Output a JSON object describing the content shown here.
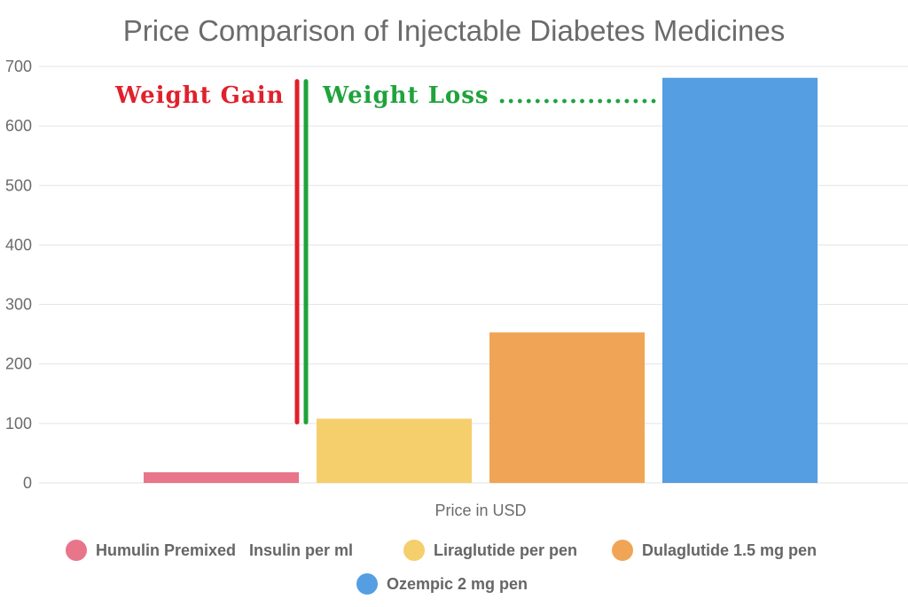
{
  "chart_data": {
    "type": "bar",
    "title": "Price Comparison of Injectable Diabetes Medicines",
    "xlabel": "Price in USD",
    "ylabel": "",
    "ylim": [
      0,
      700
    ],
    "yticks": [
      0,
      100,
      200,
      300,
      400,
      500,
      600,
      700
    ],
    "grid": true,
    "legend_position": "bottom",
    "series": [
      {
        "name": "Humulin Premixed   Insulin per ml",
        "values": [
          18
        ],
        "color": "#e8758a"
      },
      {
        "name": "Liraglutide per pen",
        "values": [
          108
        ],
        "color": "#f5cf6c"
      },
      {
        "name": "Dulaglutide 1.5 mg pen",
        "values": [
          253
        ],
        "color": "#f0a556"
      },
      {
        "name": "Ozempic 2 mg pen",
        "values": [
          681
        ],
        "color": "#559ee2"
      }
    ],
    "annotations": [
      {
        "text": "Weight Gain",
        "color": "#e0202c"
      },
      {
        "text": "Weight Loss ..................",
        "color": "#1fa33c"
      }
    ],
    "divider": {
      "from_value": 102,
      "to_value": 675,
      "colors": [
        "#e0202c",
        "#1fa33c"
      ]
    }
  }
}
